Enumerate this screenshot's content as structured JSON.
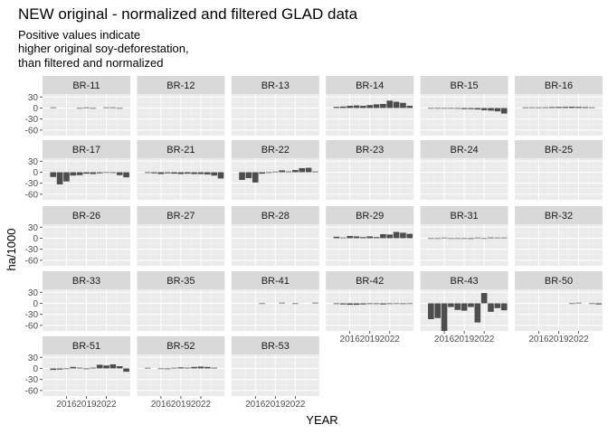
{
  "chart_data": {
    "type": "bar",
    "title": "NEW original - normalized and filtered GLAD data",
    "subtitle": [
      "Positive values indicate",
      "higher original soy-deforestation,",
      "than filtered and normalized"
    ],
    "xlabel": "YEAR",
    "ylabel": "ha/1000",
    "x_ticks": [
      2016,
      2019,
      2022
    ],
    "x_tick_labels": [
      "2016",
      "2019",
      "2022"
    ],
    "y_ticks": [
      30,
      0,
      -30,
      -60
    ],
    "y_tick_labels": [
      "30",
      "0",
      "-30",
      "-60"
    ],
    "xlim": [
      2012.4,
      2025.6
    ],
    "ylim": [
      -75,
      38
    ],
    "years": [
      2013,
      2014,
      2015,
      2016,
      2017,
      2018,
      2019,
      2020,
      2021,
      2022,
      2023,
      2024,
      2025
    ],
    "panels": [
      {
        "label": "BR-11",
        "values": [
          null,
          0.4,
          null,
          null,
          null,
          -0.5,
          0.3,
          -0.8,
          null,
          0.5,
          0.3,
          -0.4,
          null
        ]
      },
      {
        "label": "BR-12",
        "values": []
      },
      {
        "label": "BR-13",
        "values": []
      },
      {
        "label": "BR-14",
        "values": [
          null,
          3,
          4,
          6,
          7,
          6,
          8,
          10,
          11,
          20,
          17,
          14,
          6
        ]
      },
      {
        "label": "BR-15",
        "values": [
          null,
          -0.5,
          -1,
          -1,
          -1.5,
          -2,
          -3,
          -3,
          -4,
          -6,
          -7,
          -9,
          -15
        ]
      },
      {
        "label": "BR-16",
        "values": [
          null,
          0.5,
          1,
          1.5,
          2,
          2.5,
          3,
          3,
          3.5,
          3,
          2.5,
          1.5,
          null
        ]
      },
      {
        "label": "BR-17",
        "values": [
          null,
          -13,
          -33,
          -25,
          -9,
          -8,
          -4,
          -5,
          -3,
          -1,
          -2,
          -8,
          -14
        ]
      },
      {
        "label": "BR-21",
        "values": [
          null,
          -2,
          -3,
          -5,
          -3,
          -4,
          -5,
          -4,
          -5,
          -5,
          -6,
          -9,
          -17
        ]
      },
      {
        "label": "BR-22",
        "values": [
          null,
          -21,
          -16,
          -28,
          -4,
          -2,
          0.5,
          5,
          2,
          6,
          11,
          12,
          2
        ]
      },
      {
        "label": "BR-23",
        "values": []
      },
      {
        "label": "BR-24",
        "values": []
      },
      {
        "label": "BR-25",
        "values": []
      },
      {
        "label": "BR-26",
        "values": []
      },
      {
        "label": "BR-27",
        "values": []
      },
      {
        "label": "BR-28",
        "values": []
      },
      {
        "label": "BR-29",
        "values": [
          null,
          4,
          0.5,
          6,
          5,
          3,
          5,
          3,
          11,
          10,
          17,
          15,
          12
        ]
      },
      {
        "label": "BR-31",
        "values": [
          null,
          -1,
          -0.5,
          0.5,
          -1.5,
          -1,
          -0.5,
          -2,
          1,
          -1,
          2,
          1.5,
          1
        ]
      },
      {
        "label": "BR-32",
        "values": []
      },
      {
        "label": "BR-33",
        "values": []
      },
      {
        "label": "BR-35",
        "values": []
      },
      {
        "label": "BR-41",
        "values": [
          null,
          null,
          null,
          null,
          -0.5,
          null,
          null,
          0.5,
          null,
          -0.3,
          null,
          null,
          0.3
        ]
      },
      {
        "label": "BR-42",
        "values": [
          null,
          -2,
          -3,
          -4,
          -4,
          -3,
          -2,
          -2,
          -3,
          -2,
          -1,
          -2,
          -1
        ]
      },
      {
        "label": "BR-43",
        "values": [
          null,
          -43,
          -40,
          -75,
          -10,
          -18,
          -20,
          -10,
          -52,
          28,
          -23,
          -13,
          -19
        ]
      },
      {
        "label": "BR-50",
        "values": [
          null,
          null,
          null,
          null,
          null,
          null,
          null,
          null,
          -0.5,
          0.3,
          null,
          -0.8,
          -3
        ]
      },
      {
        "label": "BR-51",
        "values": [
          null,
          -4,
          -3,
          -1,
          4,
          2,
          -2,
          2,
          10,
          8,
          11,
          6,
          -9
        ]
      },
      {
        "label": "BR-52",
        "values": [
          null,
          1,
          null,
          -1,
          -2,
          1,
          3,
          2,
          4,
          5,
          4,
          2,
          null
        ]
      },
      {
        "label": "BR-53",
        "values": []
      }
    ]
  }
}
